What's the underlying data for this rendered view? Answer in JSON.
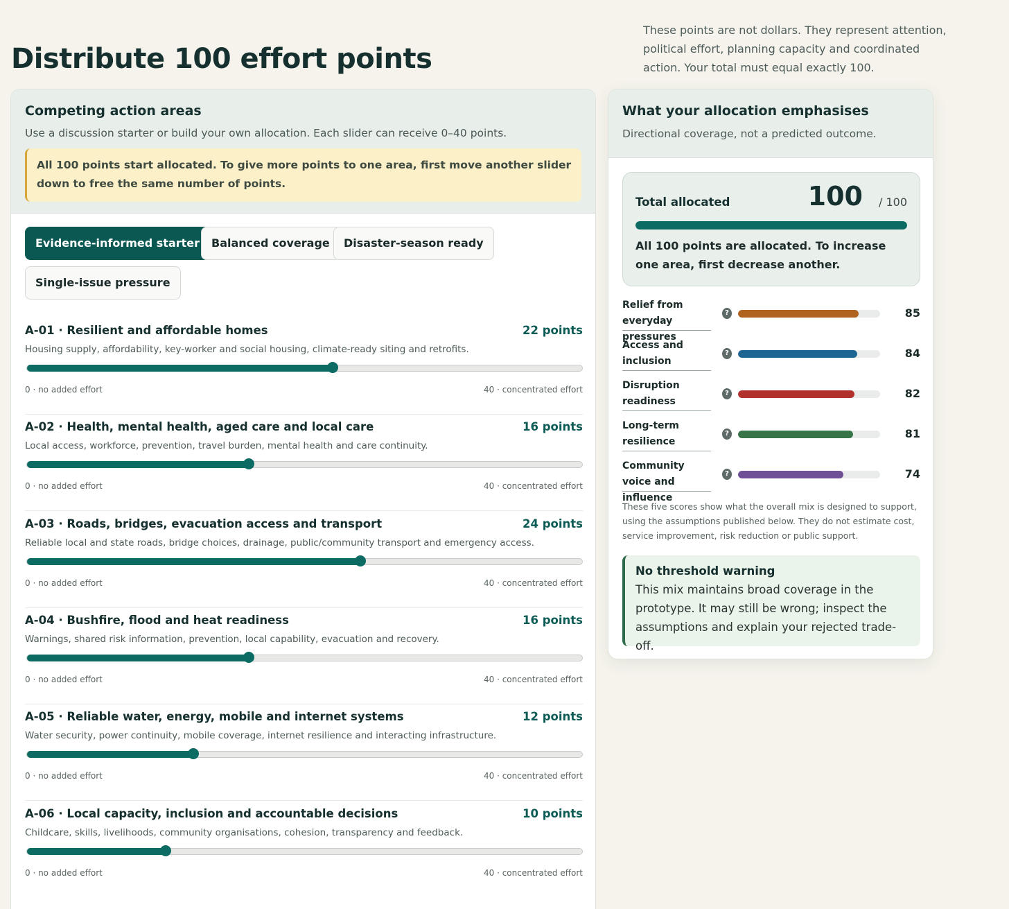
{
  "page": {
    "title": "Distribute 100 effort points",
    "intro": "These points are not dollars. They represent attention, political effort, planning capacity and coordinated action. Your total must equal exactly 100."
  },
  "left_panel": {
    "title": "Competing action areas",
    "subtitle": "Use a discussion starter or build your own allocation. Each slider can receive 0–40 points.",
    "notice": "All 100 points start allocated. To give more points to one area, first move another slider down to free the same number of points.",
    "starters": [
      {
        "label": "Evidence-informed starter",
        "active": true
      },
      {
        "label": "Balanced coverage",
        "active": false
      },
      {
        "label": "Disaster-season ready",
        "active": false
      },
      {
        "label": "Single-issue pressure",
        "active": false
      }
    ],
    "slider_max": 40,
    "areas": [
      {
        "title": "A-01 · Resilient and affordable homes",
        "points_label": "22 points",
        "points": 22,
        "description": "Housing supply, affordability, key-worker and social housing, climate-ready siting and retrofits.",
        "min_label": "0 · no added effort",
        "max_label": "40 · concentrated effort"
      },
      {
        "title": "A-02 · Health, mental health, aged care and local care",
        "points_label": "16 points",
        "points": 16,
        "description": "Local access, workforce, prevention, travel burden, mental health and care continuity.",
        "min_label": "0 · no added effort",
        "max_label": "40 · concentrated effort"
      },
      {
        "title": "A-03 · Roads, bridges, evacuation access and transport",
        "points_label": "24 points",
        "points": 24,
        "description": "Reliable local and state roads, bridge choices, drainage, public/community transport and emergency access.",
        "min_label": "0 · no added effort",
        "max_label": "40 · concentrated effort"
      },
      {
        "title": "A-04 · Bushfire, flood and heat readiness",
        "points_label": "16 points",
        "points": 16,
        "description": "Warnings, shared risk information, prevention, local capability, evacuation and recovery.",
        "min_label": "0 · no added effort",
        "max_label": "40 · concentrated effort"
      },
      {
        "title": "A-05 · Reliable water, energy, mobile and internet systems",
        "points_label": "12 points",
        "points": 12,
        "description": "Water security, power continuity, mobile coverage, internet resilience and interacting infrastructure.",
        "min_label": "0 · no added effort",
        "max_label": "40 · concentrated effort"
      },
      {
        "title": "A-06 · Local capacity, inclusion and accountable decisions",
        "points_label": "10 points",
        "points": 10,
        "description": "Childcare, skills, livelihoods, community organisations, cohesion, transparency and feedback.",
        "min_label": "0 · no added effort",
        "max_label": "40 · concentrated effort"
      }
    ]
  },
  "right_panel": {
    "title": "What your allocation emphasises",
    "subtitle": "Directional coverage, not a predicted outcome.",
    "total": {
      "label": "Total allocated",
      "value": "100",
      "of": "/ 100",
      "fraction": 1.0,
      "message": "All 100 points are allocated. To increase one area, first decrease another."
    },
    "scores": [
      {
        "label": "Relief from everyday pressures",
        "value": 85,
        "color": "#b0621f"
      },
      {
        "label": "Access and inclusion",
        "value": 84,
        "color": "#1f6591"
      },
      {
        "label": "Disruption readiness",
        "value": 82,
        "color": "#b1312d"
      },
      {
        "label": "Long-term resilience",
        "value": 81,
        "color": "#377548"
      },
      {
        "label": "Community voice and influence",
        "value": 74,
        "color": "#6f4f95"
      }
    ],
    "help_glyph": "?",
    "score_note": "These five scores show what the overall mix is designed to support, using the assumptions published below. They do not estimate cost, service improvement, risk reduction or public support.",
    "warning": {
      "title": "No threshold warning",
      "text": "This mix maintains broad coverage in the prototype. It may still be wrong; inspect the assumptions and explain your rejected trade-off."
    }
  }
}
